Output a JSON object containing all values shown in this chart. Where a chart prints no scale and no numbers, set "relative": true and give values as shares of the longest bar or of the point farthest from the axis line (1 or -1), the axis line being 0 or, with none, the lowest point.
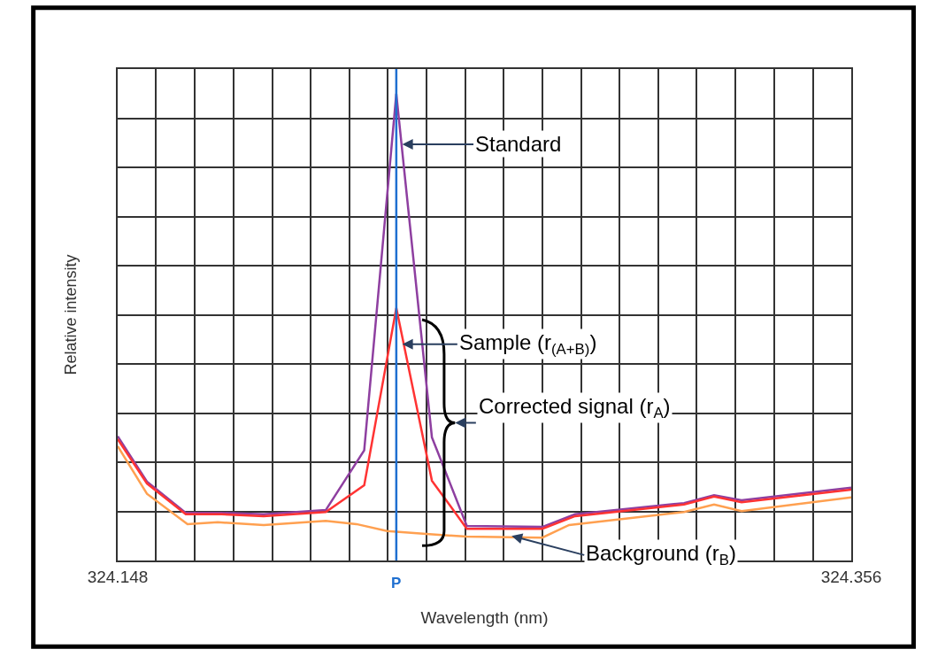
{
  "chart_data": {
    "type": "line",
    "relative": true,
    "xlabel": "Wavelength (nm)",
    "ylabel": "Relative intensity",
    "xlim": [
      324.148,
      324.356
    ],
    "xticks": [
      324.148,
      {
        "value": 324.1589,
        "label": null
      },
      {
        "value": 324.1699,
        "label": null
      },
      {
        "value": 324.1808,
        "label": null
      },
      {
        "value": 324.1918,
        "label": null
      },
      {
        "value": 324.2027,
        "label": null
      },
      {
        "value": 324.2137,
        "label": null
      },
      {
        "value": 324.2246,
        "label": null
      },
      {
        "value": 324.2356,
        "label": null
      },
      {
        "value": 324.2465,
        "label": null
      },
      {
        "value": 324.2575,
        "label": null
      },
      {
        "value": 324.2684,
        "label": null
      },
      {
        "value": 324.2794,
        "label": null
      },
      {
        "value": 324.2903,
        "label": null
      },
      {
        "value": 324.3013,
        "label": null
      },
      {
        "value": 324.3122,
        "label": null
      },
      {
        "value": 324.3232,
        "label": null
      },
      {
        "value": 324.3341,
        "label": null
      },
      {
        "value": 324.3451,
        "label": null
      },
      324.356
    ],
    "grid": true,
    "legend": false,
    "marker": "none",
    "line_style": "solid",
    "series": [
      {
        "color": "#ffa050",
        "x": [
          324.148,
          324.1563,
          324.1678,
          324.1764,
          324.1894,
          324.207,
          324.2157,
          324.2244,
          324.2355,
          324.247,
          324.2684,
          324.276,
          324.3086,
          324.3171,
          324.3249,
          324.356
        ],
        "values": [
          0.245,
          0.143,
          0.078,
          0.082,
          0.076,
          0.085,
          0.078,
          0.063,
          0.057,
          0.051,
          0.049,
          0.076,
          0.104,
          0.12,
          0.106,
          0.135
        ]
      },
      {
        "color": "#8e3fa0",
        "x": [
          324.148,
          324.1563,
          324.1673,
          324.1774,
          324.1894,
          324.207,
          324.2179,
          324.227,
          324.2371,
          324.247,
          324.2684,
          324.2777,
          324.3086,
          324.3171,
          324.3249,
          324.356
        ],
        "values": [
          0.266,
          0.169,
          0.102,
          0.102,
          0.099,
          0.108,
          0.236,
          1,
          0.264,
          0.074,
          0.072,
          0.099,
          0.123,
          0.14,
          0.129,
          0.156
        ]
      },
      {
        "color": "#ff3333",
        "x": [
          324.148,
          324.1563,
          324.1673,
          324.1774,
          324.1894,
          324.207,
          324.2179,
          324.227,
          324.2371,
          324.247,
          324.2684,
          324.2777,
          324.3086,
          324.3171,
          324.3249,
          324.356
        ],
        "values": [
          0.26,
          0.165,
          0.099,
          0.099,
          0.095,
          0.104,
          0.161,
          0.541,
          0.171,
          0.068,
          0.068,
          0.095,
          0.12,
          0.137,
          0.125,
          0.152
        ]
      }
    ],
    "ref_lines": [
      {
        "axis": "x",
        "value": 324.227,
        "label": "P",
        "color": "#1f6fd0"
      }
    ],
    "annotations": [
      "Standard",
      "Sample (r$_{(A+B)}$)",
      "Corrected signal (r$_{A}$)",
      "Background (r$_{B}$)"
    ]
  }
}
